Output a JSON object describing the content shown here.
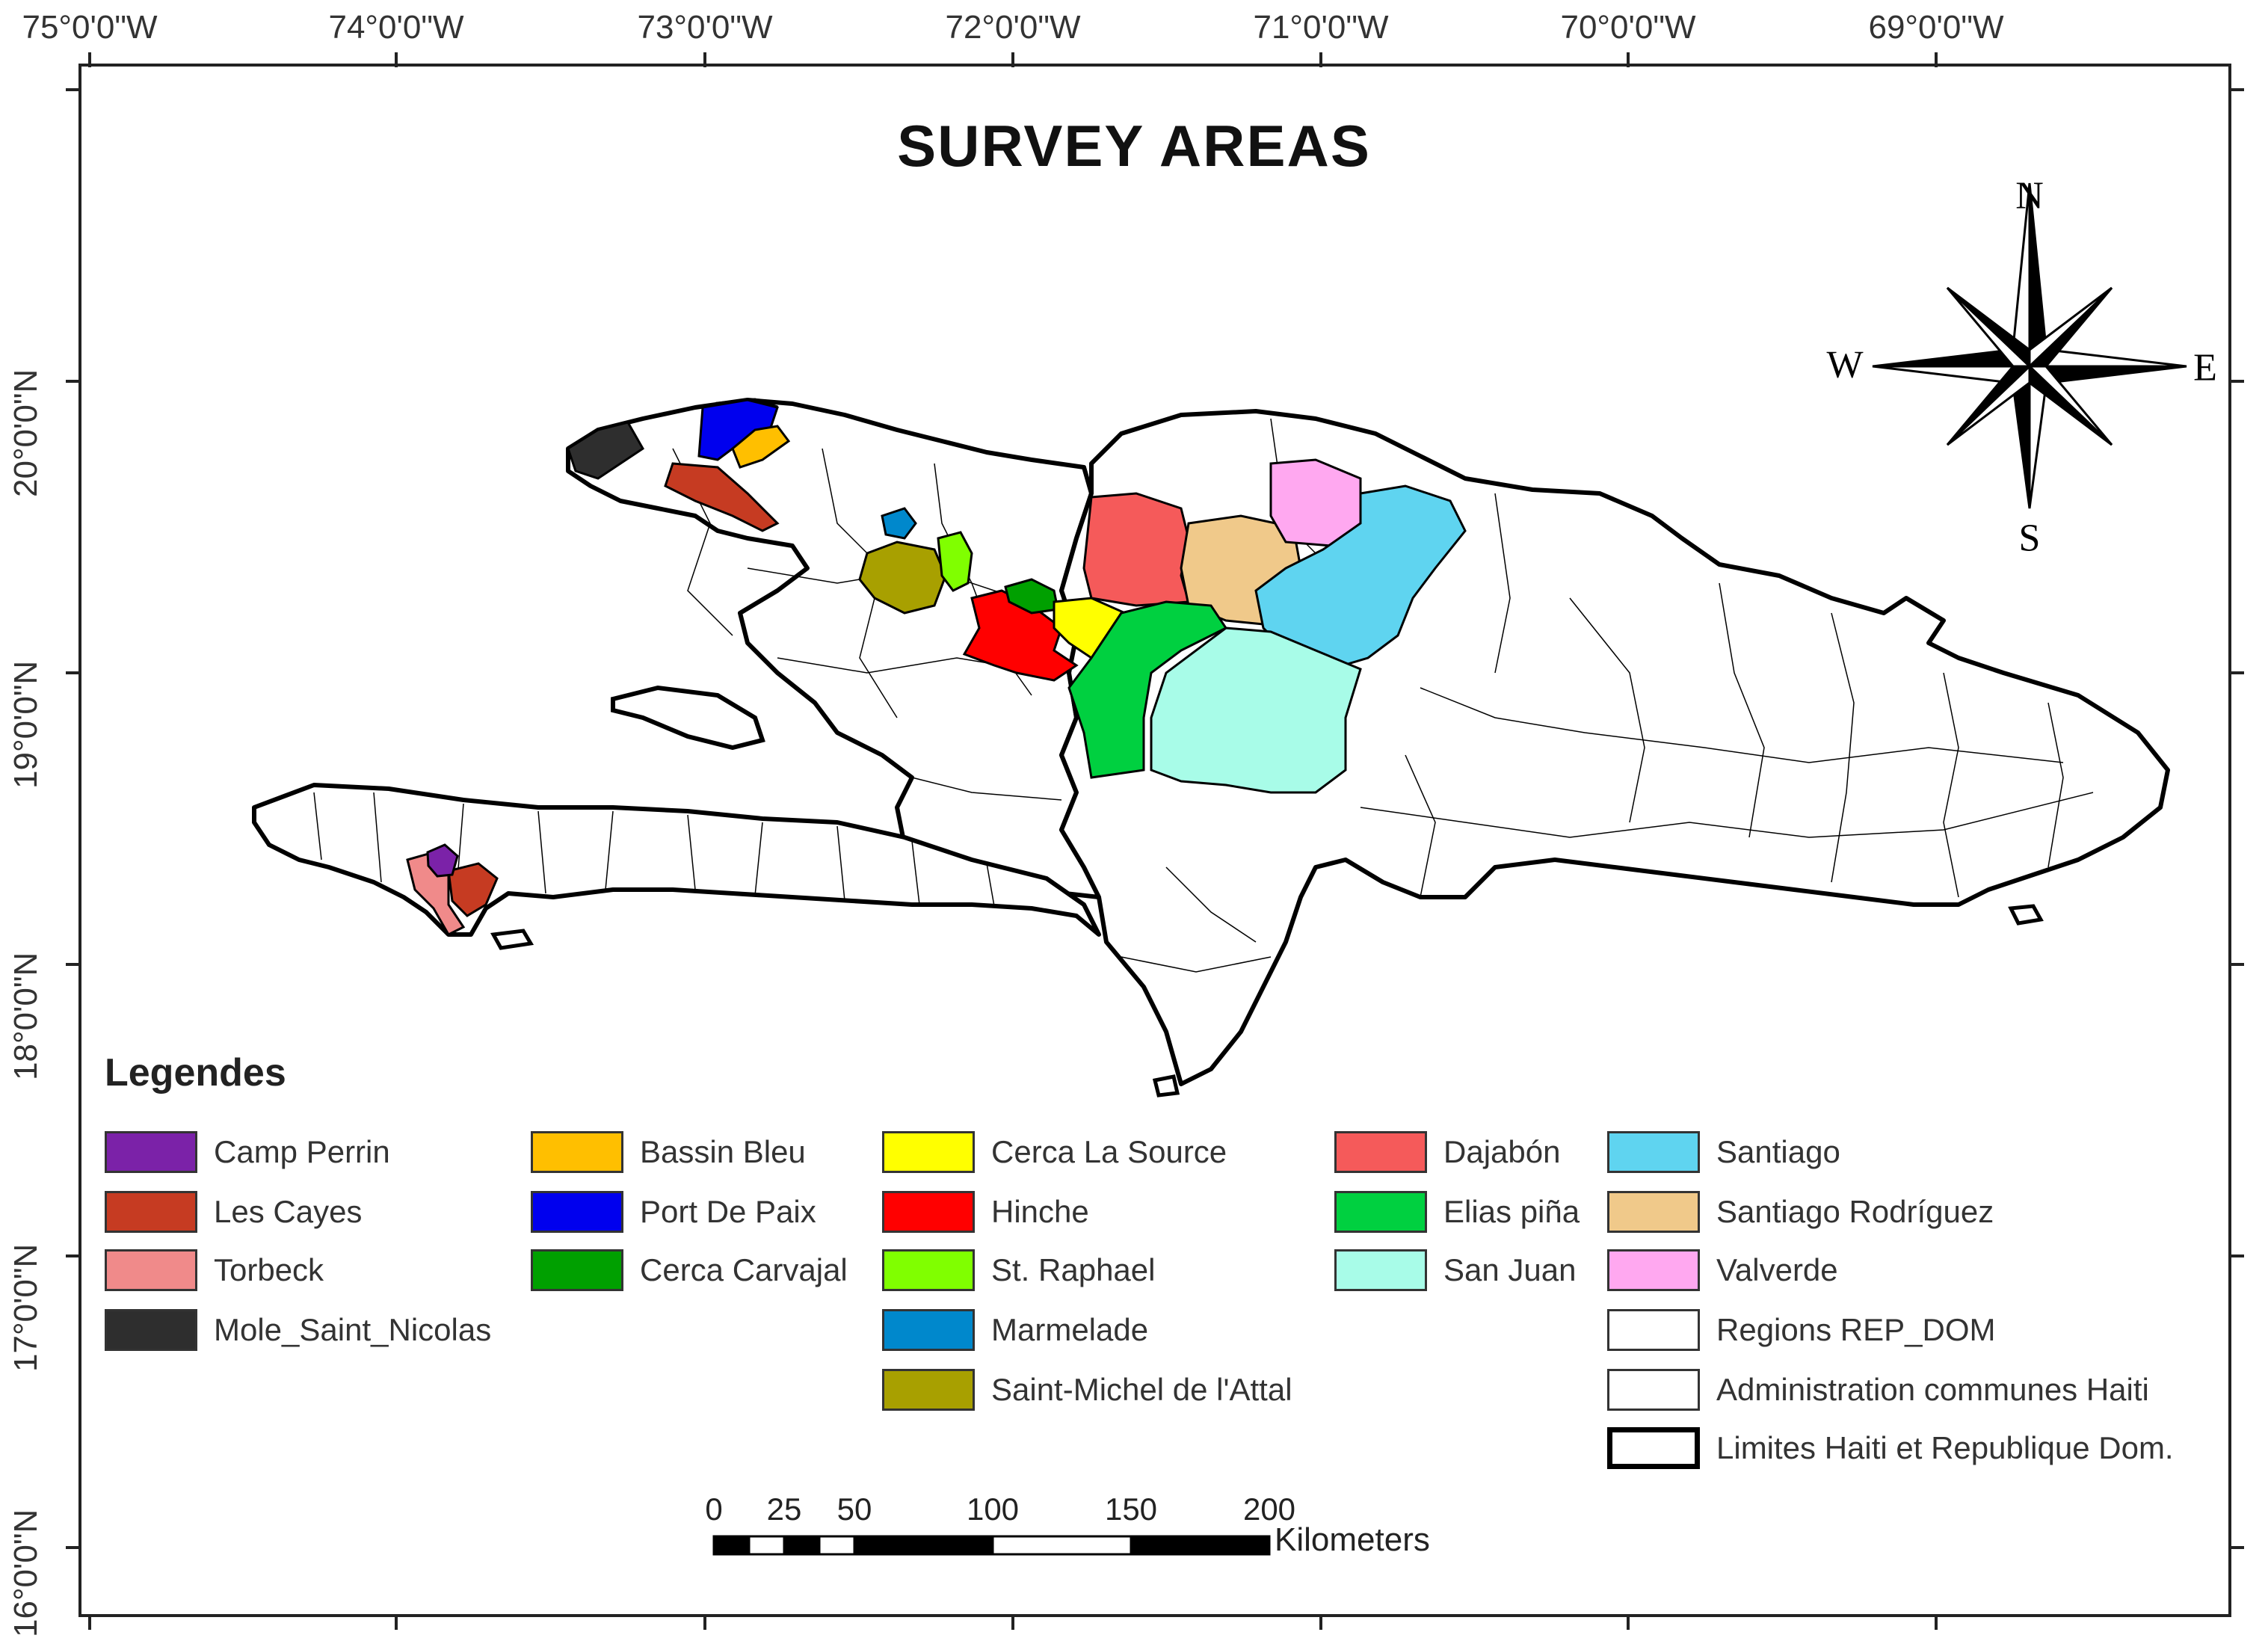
{
  "map": {
    "title": "SURVEY AREAS",
    "longitude_labels": [
      "75°0'0\"W",
      "74°0'0\"W",
      "73°0'0\"W",
      "72°0'0\"W",
      "71°0'0\"W",
      "70°0'0\"W",
      "69°0'0\"W"
    ],
    "latitude_labels": [
      "20°0'0\"N",
      "19°0'0\"N",
      "18°0'0\"N",
      "17°0'0\"N",
      "16°0'0\"N"
    ],
    "compass": {
      "n": "N",
      "s": "S",
      "e": "E",
      "w": "W"
    },
    "scale_bar": {
      "ticks": [
        "0",
        "25",
        "50",
        "100",
        "150",
        "200"
      ],
      "unit": "Kilometers"
    },
    "land_color": "#ffffff",
    "boundary_color": "#000000"
  },
  "legend": {
    "title": "Legendes",
    "items": [
      {
        "label": "Camp Perrin",
        "color": "#7b22a8"
      },
      {
        "label": "Les Cayes",
        "color": "#c63b22"
      },
      {
        "label": "Torbeck",
        "color": "#f08a8a"
      },
      {
        "label": "Mole_Saint_Nicolas",
        "color": "#2e2e2e"
      },
      {
        "label": "Bassin Bleu",
        "color": "#ffbf00"
      },
      {
        "label": "Port De Paix",
        "color": "#0000ee"
      },
      {
        "label": "Cerca Carvajal",
        "color": "#00a000"
      },
      {
        "label": "Cerca La Source",
        "color": "#ffff00"
      },
      {
        "label": "Hinche",
        "color": "#ff0000"
      },
      {
        "label": "St. Raphael",
        "color": "#80ff00"
      },
      {
        "label": "Marmelade",
        "color": "#0088cc"
      },
      {
        "label": "Saint-Michel de l'Attal",
        "color": "#a8a000"
      },
      {
        "label": "Dajabón",
        "color": "#f55a5a"
      },
      {
        "label": "Elias piña",
        "color": "#00d040"
      },
      {
        "label": "San Juan",
        "color": "#a8fce8"
      },
      {
        "label": "Santiago",
        "color": "#5fd4f0"
      },
      {
        "label": "Santiago Rodríguez",
        "color": "#f0c98a"
      },
      {
        "label": "Valverde",
        "color": "#ffa8f0"
      },
      {
        "label": "Regions REP_DOM",
        "color": "#ffffff"
      },
      {
        "label": "Administration communes Haiti",
        "color": "#ffffff"
      },
      {
        "label": "Limites Haiti et Republique Dom.",
        "color": "#ffffff"
      }
    ]
  }
}
